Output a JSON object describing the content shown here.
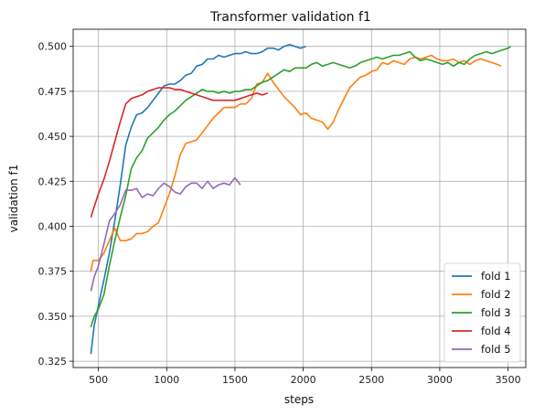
{
  "chart_data": {
    "type": "line",
    "title": "Transformer validation f1",
    "xlabel": "steps",
    "ylabel": "validation f1",
    "xlim": [
      315,
      3630
    ],
    "ylim": [
      0.3215,
      0.5095
    ],
    "xticks": [
      500,
      1000,
      1500,
      2000,
      2500,
      3000,
      3500
    ],
    "yticks": [
      0.325,
      0.35,
      0.375,
      0.4,
      0.425,
      0.45,
      0.475,
      0.5
    ],
    "ytick_labels": [
      "0.325",
      "0.350",
      "0.375",
      "0.400",
      "0.425",
      "0.450",
      "0.475",
      "0.500"
    ],
    "grid": true,
    "legend_position": "bottom-right",
    "series": [
      {
        "name": "fold 1",
        "color": "#1f77b4",
        "points": [
          [
            445,
            0.329
          ],
          [
            470,
            0.345
          ],
          [
            500,
            0.356
          ],
          [
            540,
            0.37
          ],
          [
            580,
            0.385
          ],
          [
            620,
            0.403
          ],
          [
            660,
            0.423
          ],
          [
            700,
            0.445
          ],
          [
            740,
            0.455
          ],
          [
            780,
            0.462
          ],
          [
            820,
            0.463
          ],
          [
            860,
            0.466
          ],
          [
            900,
            0.47
          ],
          [
            940,
            0.474
          ],
          [
            980,
            0.478
          ],
          [
            1020,
            0.479
          ],
          [
            1060,
            0.479
          ],
          [
            1100,
            0.481
          ],
          [
            1140,
            0.484
          ],
          [
            1180,
            0.485
          ],
          [
            1220,
            0.489
          ],
          [
            1260,
            0.49
          ],
          [
            1300,
            0.493
          ],
          [
            1340,
            0.493
          ],
          [
            1380,
            0.495
          ],
          [
            1420,
            0.494
          ],
          [
            1460,
            0.495
          ],
          [
            1500,
            0.496
          ],
          [
            1540,
            0.496
          ],
          [
            1580,
            0.497
          ],
          [
            1620,
            0.496
          ],
          [
            1660,
            0.496
          ],
          [
            1700,
            0.497
          ],
          [
            1740,
            0.499
          ],
          [
            1780,
            0.499
          ],
          [
            1820,
            0.498
          ],
          [
            1860,
            0.5
          ],
          [
            1900,
            0.501
          ],
          [
            1940,
            0.5
          ],
          [
            1980,
            0.499
          ],
          [
            2020,
            0.5
          ]
        ]
      },
      {
        "name": "fold 2",
        "color": "#ff7f0e",
        "points": [
          [
            445,
            0.375
          ],
          [
            460,
            0.381
          ],
          [
            500,
            0.381
          ],
          [
            540,
            0.385
          ],
          [
            580,
            0.392
          ],
          [
            620,
            0.399
          ],
          [
            660,
            0.392
          ],
          [
            700,
            0.392
          ],
          [
            740,
            0.393
          ],
          [
            780,
            0.396
          ],
          [
            820,
            0.396
          ],
          [
            860,
            0.397
          ],
          [
            900,
            0.4
          ],
          [
            940,
            0.402
          ],
          [
            980,
            0.41
          ],
          [
            1020,
            0.418
          ],
          [
            1060,
            0.428
          ],
          [
            1100,
            0.44
          ],
          [
            1140,
            0.446
          ],
          [
            1180,
            0.447
          ],
          [
            1220,
            0.448
          ],
          [
            1260,
            0.452
          ],
          [
            1300,
            0.456
          ],
          [
            1340,
            0.46
          ],
          [
            1380,
            0.463
          ],
          [
            1420,
            0.466
          ],
          [
            1460,
            0.466
          ],
          [
            1500,
            0.466
          ],
          [
            1540,
            0.468
          ],
          [
            1580,
            0.468
          ],
          [
            1620,
            0.471
          ],
          [
            1660,
            0.479
          ],
          [
            1700,
            0.48
          ],
          [
            1740,
            0.485
          ],
          [
            1780,
            0.48
          ],
          [
            1820,
            0.476
          ],
          [
            1860,
            0.472
          ],
          [
            1900,
            0.469
          ],
          [
            1940,
            0.466
          ],
          [
            1980,
            0.462
          ],
          [
            2020,
            0.463
          ],
          [
            2060,
            0.46
          ],
          [
            2100,
            0.459
          ],
          [
            2140,
            0.458
          ],
          [
            2180,
            0.454
          ],
          [
            2220,
            0.458
          ],
          [
            2260,
            0.465
          ],
          [
            2300,
            0.471
          ],
          [
            2340,
            0.477
          ],
          [
            2380,
            0.48
          ],
          [
            2420,
            0.483
          ],
          [
            2460,
            0.484
          ],
          [
            2500,
            0.486
          ],
          [
            2540,
            0.487
          ],
          [
            2580,
            0.491
          ],
          [
            2620,
            0.49
          ],
          [
            2660,
            0.492
          ],
          [
            2700,
            0.491
          ],
          [
            2740,
            0.49
          ],
          [
            2780,
            0.493
          ],
          [
            2820,
            0.494
          ],
          [
            2860,
            0.493
          ],
          [
            2900,
            0.494
          ],
          [
            2940,
            0.495
          ],
          [
            2980,
            0.493
          ],
          [
            3020,
            0.492
          ],
          [
            3060,
            0.492
          ],
          [
            3100,
            0.493
          ],
          [
            3140,
            0.491
          ],
          [
            3180,
            0.492
          ],
          [
            3220,
            0.49
          ],
          [
            3260,
            0.492
          ],
          [
            3300,
            0.493
          ],
          [
            3340,
            0.492
          ],
          [
            3380,
            0.491
          ],
          [
            3420,
            0.49
          ],
          [
            3450,
            0.489
          ]
        ]
      },
      {
        "name": "fold 3",
        "color": "#2ca02c",
        "points": [
          [
            445,
            0.344
          ],
          [
            470,
            0.35
          ],
          [
            500,
            0.354
          ],
          [
            540,
            0.362
          ],
          [
            580,
            0.378
          ],
          [
            620,
            0.392
          ],
          [
            660,
            0.405
          ],
          [
            700,
            0.417
          ],
          [
            740,
            0.432
          ],
          [
            780,
            0.438
          ],
          [
            820,
            0.442
          ],
          [
            860,
            0.449
          ],
          [
            900,
            0.452
          ],
          [
            940,
            0.455
          ],
          [
            980,
            0.459
          ],
          [
            1020,
            0.462
          ],
          [
            1060,
            0.464
          ],
          [
            1100,
            0.467
          ],
          [
            1140,
            0.47
          ],
          [
            1180,
            0.472
          ],
          [
            1220,
            0.474
          ],
          [
            1260,
            0.476
          ],
          [
            1300,
            0.475
          ],
          [
            1340,
            0.475
          ],
          [
            1380,
            0.474
          ],
          [
            1420,
            0.475
          ],
          [
            1460,
            0.474
          ],
          [
            1500,
            0.475
          ],
          [
            1540,
            0.475
          ],
          [
            1580,
            0.476
          ],
          [
            1620,
            0.476
          ],
          [
            1660,
            0.478
          ],
          [
            1700,
            0.48
          ],
          [
            1740,
            0.481
          ],
          [
            1780,
            0.483
          ],
          [
            1820,
            0.485
          ],
          [
            1860,
            0.487
          ],
          [
            1900,
            0.486
          ],
          [
            1940,
            0.488
          ],
          [
            1980,
            0.488
          ],
          [
            2020,
            0.488
          ],
          [
            2060,
            0.49
          ],
          [
            2100,
            0.491
          ],
          [
            2140,
            0.489
          ],
          [
            2180,
            0.49
          ],
          [
            2220,
            0.491
          ],
          [
            2260,
            0.49
          ],
          [
            2300,
            0.489
          ],
          [
            2340,
            0.488
          ],
          [
            2380,
            0.489
          ],
          [
            2420,
            0.491
          ],
          [
            2460,
            0.492
          ],
          [
            2500,
            0.493
          ],
          [
            2540,
            0.494
          ],
          [
            2580,
            0.493
          ],
          [
            2620,
            0.494
          ],
          [
            2660,
            0.495
          ],
          [
            2700,
            0.495
          ],
          [
            2740,
            0.496
          ],
          [
            2780,
            0.497
          ],
          [
            2820,
            0.494
          ],
          [
            2860,
            0.492
          ],
          [
            2900,
            0.493
          ],
          [
            2940,
            0.492
          ],
          [
            2980,
            0.491
          ],
          [
            3020,
            0.49
          ],
          [
            3060,
            0.491
          ],
          [
            3100,
            0.489
          ],
          [
            3140,
            0.491
          ],
          [
            3180,
            0.49
          ],
          [
            3220,
            0.493
          ],
          [
            3260,
            0.495
          ],
          [
            3300,
            0.496
          ],
          [
            3340,
            0.497
          ],
          [
            3380,
            0.496
          ],
          [
            3420,
            0.497
          ],
          [
            3460,
            0.498
          ],
          [
            3500,
            0.499
          ],
          [
            3520,
            0.5
          ]
        ]
      },
      {
        "name": "fold 4",
        "color": "#d62728",
        "points": [
          [
            445,
            0.405
          ],
          [
            470,
            0.411
          ],
          [
            500,
            0.418
          ],
          [
            540,
            0.426
          ],
          [
            580,
            0.436
          ],
          [
            620,
            0.447
          ],
          [
            660,
            0.458
          ],
          [
            700,
            0.468
          ],
          [
            740,
            0.471
          ],
          [
            780,
            0.472
          ],
          [
            820,
            0.473
          ],
          [
            860,
            0.475
          ],
          [
            900,
            0.476
          ],
          [
            940,
            0.477
          ],
          [
            980,
            0.477
          ],
          [
            1020,
            0.477
          ],
          [
            1060,
            0.476
          ],
          [
            1100,
            0.476
          ],
          [
            1140,
            0.475
          ],
          [
            1180,
            0.474
          ],
          [
            1220,
            0.473
          ],
          [
            1260,
            0.472
          ],
          [
            1300,
            0.471
          ],
          [
            1340,
            0.47
          ],
          [
            1380,
            0.47
          ],
          [
            1420,
            0.47
          ],
          [
            1460,
            0.47
          ],
          [
            1500,
            0.47
          ],
          [
            1540,
            0.471
          ],
          [
            1580,
            0.472
          ],
          [
            1620,
            0.473
          ],
          [
            1660,
            0.474
          ],
          [
            1700,
            0.473
          ],
          [
            1740,
            0.474
          ]
        ]
      },
      {
        "name": "fold 5",
        "color": "#9467bd",
        "points": [
          [
            445,
            0.364
          ],
          [
            470,
            0.372
          ],
          [
            500,
            0.378
          ],
          [
            540,
            0.39
          ],
          [
            580,
            0.403
          ],
          [
            620,
            0.407
          ],
          [
            660,
            0.412
          ],
          [
            700,
            0.42
          ],
          [
            740,
            0.42
          ],
          [
            780,
            0.421
          ],
          [
            820,
            0.416
          ],
          [
            860,
            0.418
          ],
          [
            900,
            0.417
          ],
          [
            940,
            0.421
          ],
          [
            980,
            0.424
          ],
          [
            1020,
            0.422
          ],
          [
            1060,
            0.419
          ],
          [
            1100,
            0.418
          ],
          [
            1140,
            0.422
          ],
          [
            1180,
            0.424
          ],
          [
            1220,
            0.424
          ],
          [
            1260,
            0.421
          ],
          [
            1300,
            0.425
          ],
          [
            1340,
            0.421
          ],
          [
            1380,
            0.423
          ],
          [
            1420,
            0.424
          ],
          [
            1460,
            0.423
          ],
          [
            1500,
            0.427
          ],
          [
            1540,
            0.423
          ]
        ]
      }
    ]
  }
}
